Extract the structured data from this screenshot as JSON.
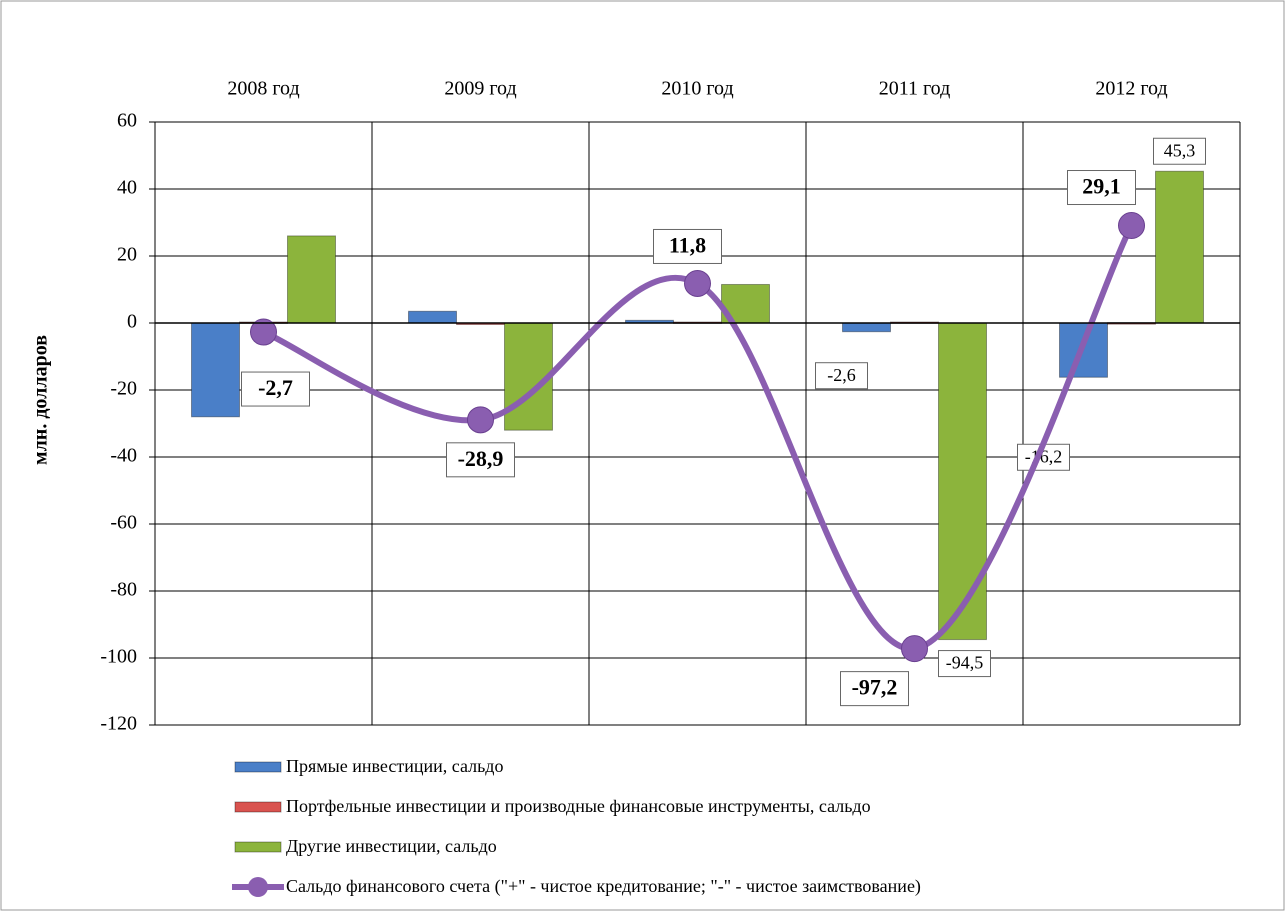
{
  "chart_data": {
    "type": "bar",
    "y_label": "млн. долларов",
    "categories": [
      "2008 год",
      "2009 год",
      "2010 год",
      "2011 год",
      "2012 год"
    ],
    "ylim": [
      -120,
      60
    ],
    "yticks": [
      60,
      40,
      20,
      0,
      -20,
      -40,
      -60,
      -80,
      -100,
      -120
    ],
    "grid": true,
    "legend": "bottom",
    "series": [
      {
        "name": "Прямые инвестиции, сальдо",
        "type": "bar",
        "color": "#4a7fc8",
        "values": [
          -28,
          3.5,
          0.8,
          -2.6,
          -16.2
        ],
        "value_labels": [
          null,
          null,
          null,
          "-2,6",
          "-16,2"
        ]
      },
      {
        "name": "Портфельные инвестиции и производные финансовые инструменты, сальдо",
        "type": "bar",
        "color": "#d9534f",
        "values": [
          0.3,
          -0.3,
          0.3,
          0.3,
          0.1
        ]
      },
      {
        "name": "Другие инвестиции, сальдо",
        "type": "bar",
        "color": "#8cb43c",
        "values": [
          26,
          -32,
          11.5,
          -94.5,
          45.3
        ],
        "value_labels": [
          null,
          null,
          null,
          "-94,5",
          "45,3"
        ]
      },
      {
        "name": "Сальдо финансового счета (\"+\"  - чистое кредитование; \"-\"  - чистое заимствование)",
        "type": "line",
        "color": "#8a5eb0",
        "values": [
          -2.7,
          -28.9,
          11.8,
          -97.2,
          29.1
        ],
        "value_labels": [
          "-2,7",
          "-28,9",
          "11,8",
          "-97,2",
          "29,1"
        ]
      }
    ]
  }
}
